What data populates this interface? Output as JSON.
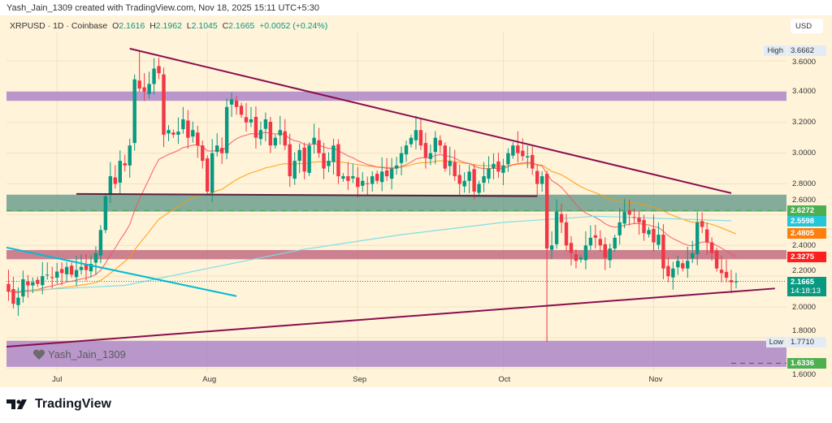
{
  "credit": "Yash_Jain_1309 created with TradingView.com, Nov 18, 2025 15:11 UTC+5:30",
  "legend": {
    "symbol": "XRPUSD · 1D · Coinbase",
    "o_label": "O",
    "o": "2.1616",
    "h_label": "H",
    "h": "2.1962",
    "l_label": "L",
    "l": "2.1045",
    "c_label": "C",
    "c": "2.1665",
    "change": "+0.0052 (+0.24%)"
  },
  "currency": "USD",
  "watermark": "Yash_Jain_1309",
  "brand": "TradingView",
  "colors": {
    "up": "#089981",
    "down": "#f23645",
    "ema_fast": "#f7525f",
    "ema_slow": "#ff9800",
    "ma_long": "#80deea",
    "trend": "#880e4f",
    "cyan_line": "#00bcd4",
    "bg": "#fff3d9"
  },
  "chart_data": {
    "type": "candlestick",
    "first_date": "2025-06-20",
    "closes": [
      2.15,
      2.1,
      2.02,
      2.06,
      2.18,
      2.14,
      2.16,
      2.15,
      2.2,
      2.21,
      2.19,
      2.23,
      2.22,
      2.26,
      2.21,
      2.24,
      2.26,
      2.24,
      2.28,
      2.35,
      2.5,
      2.72,
      2.85,
      2.8,
      2.95,
      2.92,
      3.05,
      3.48,
      3.42,
      3.4,
      3.45,
      3.55,
      3.52,
      3.12,
      3.15,
      3.12,
      3.14,
      3.22,
      3.1,
      3.15,
      3.05,
      2.95,
      2.75,
      3.0,
      3.05,
      3.0,
      3.3,
      3.35,
      3.3,
      3.25,
      3.2,
      3.22,
      3.1,
      3.15,
      3.22,
      3.05,
      3.1,
      3.15,
      3.05,
      2.85,
      2.95,
      3.02,
      2.88,
      3.05,
      3.1,
      3.0,
      2.9,
      2.95,
      3.05,
      2.85,
      2.85,
      2.82,
      2.85,
      2.78,
      2.82,
      2.8,
      2.85,
      2.82,
      2.88,
      2.85,
      2.9,
      2.92,
      3.0,
      3.05,
      3.1,
      3.15,
      3.05,
      2.97,
      3.0,
      3.1,
      3.05,
      2.9,
      2.95,
      2.85,
      2.8,
      2.82,
      2.88,
      2.75,
      2.8,
      2.85,
      2.9,
      2.93,
      2.88,
      2.92,
      3.0,
      3.05,
      3.0,
      2.98,
      2.98,
      2.9,
      2.8,
      2.85,
      2.38,
      2.4,
      2.62,
      2.55,
      2.4,
      2.35,
      2.3,
      2.32,
      2.4,
      2.45,
      2.45,
      2.4,
      2.32,
      2.38,
      2.45,
      2.55,
      2.62,
      2.6,
      2.58,
      2.55,
      2.48,
      2.5,
      2.42,
      2.47,
      2.25,
      2.2,
      2.25,
      2.3,
      2.25,
      2.3,
      2.35,
      2.55,
      2.52,
      2.42,
      2.35,
      2.25,
      2.22,
      2.19,
      2.16,
      2.1665
    ],
    "high": {
      "date": "2025-07-18",
      "value": 3.6662,
      "label": "High",
      "text": "3.6662"
    },
    "low": {
      "date": "2025-10-10",
      "value": 1.771,
      "label": "Low",
      "text": "1.7710"
    },
    "ma_long": [
      [
        "2025-06-20",
        2.1
      ],
      [
        "2025-07-15",
        2.14
      ],
      [
        "2025-08-01",
        2.25
      ],
      [
        "2025-08-20",
        2.37
      ],
      [
        "2025-09-10",
        2.47
      ],
      [
        "2025-10-01",
        2.55
      ],
      [
        "2025-10-20",
        2.59
      ],
      [
        "2025-11-17",
        2.56
      ]
    ],
    "y_ticks": [
      "3.6000",
      "3.4000",
      "3.2000",
      "3.0000",
      "2.8000",
      "2.6000",
      "2.4000",
      "2.2000",
      "2.0000",
      "1.8000",
      "1.6000"
    ],
    "x_ticks": [
      {
        "label": "Jul",
        "date": "2025-07-01"
      },
      {
        "label": "Aug",
        "date": "2025-08-01"
      },
      {
        "label": "Sep",
        "date": "2025-09-01"
      },
      {
        "label": "Oct",
        "date": "2025-10-01"
      },
      {
        "label": "Nov",
        "date": "2025-11-01"
      }
    ],
    "zones": [
      {
        "top": 3.4,
        "bottom": 3.34,
        "color": "#9c6fc4"
      },
      {
        "top": 2.73,
        "bottom": 2.62,
        "color": "#4f8f7f"
      },
      {
        "top": 2.37,
        "bottom": 2.31,
        "color": "#b5506f"
      },
      {
        "top": 1.78,
        "bottom": 1.61,
        "color": "#9c6fc4"
      }
    ],
    "lines": [
      {
        "from": [
          "2025-07-16",
          3.68
        ],
        "to": [
          "2025-11-17",
          2.74
        ],
        "color": "#880e4f"
      },
      {
        "from": [
          "2025-06-20",
          1.74
        ],
        "to": [
          "2025-11-26",
          2.12
        ],
        "color": "#880e4f"
      },
      {
        "from": [
          "2025-07-05",
          2.735
        ],
        "to": [
          "2025-10-08",
          2.72
        ],
        "color": "#5b2040"
      },
      {
        "from": [
          "2025-06-20",
          2.39
        ],
        "to": [
          "2025-08-07",
          2.07
        ],
        "color": "#00bcd4"
      }
    ],
    "dashed_level": 2.6272,
    "badges": [
      {
        "text": "2.6272",
        "value": 2.6272,
        "color": "#4caf50"
      },
      {
        "text": "2.5598",
        "value": 2.5598,
        "color": "#26c6da"
      },
      {
        "text": "2.4805",
        "value": 2.4805,
        "color": "#ff7f0e"
      },
      {
        "text": "2.3275",
        "value": 2.3275,
        "color": "#ff1f1f"
      },
      {
        "text": "1.6336",
        "value": 1.6336,
        "color": "#4caf50"
      }
    ],
    "last": {
      "text": "2.1665",
      "value": 2.1665,
      "countdown": "14:18:13",
      "color": "#089981"
    }
  }
}
